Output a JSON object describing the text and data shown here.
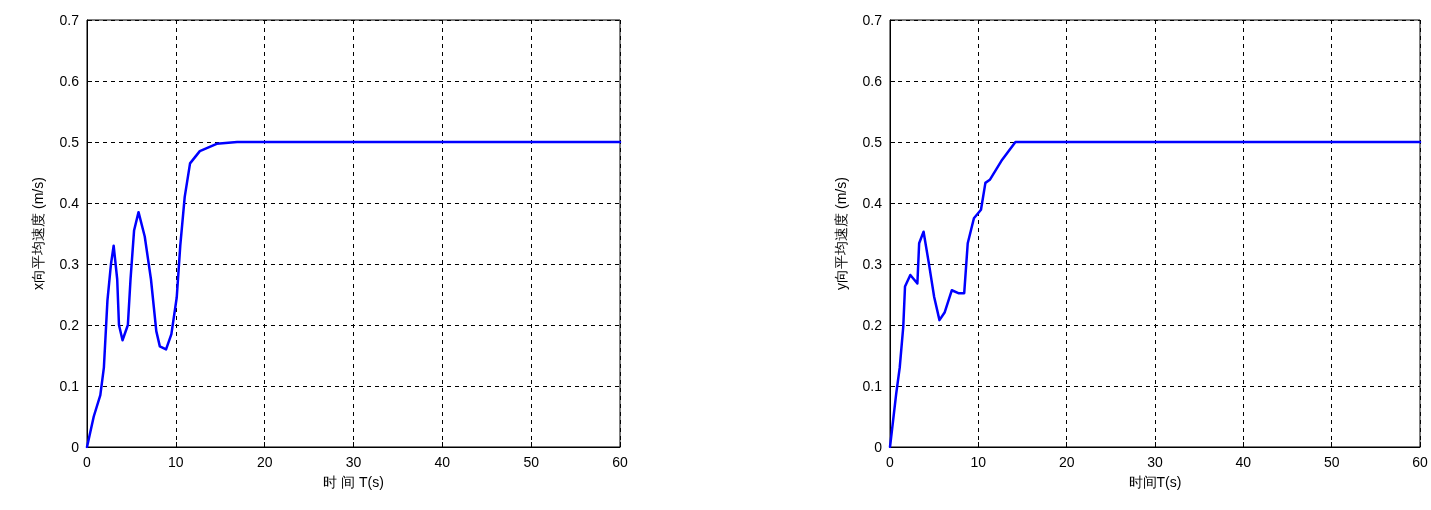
{
  "chart_data": [
    {
      "type": "line",
      "xlabel": "时 间 T(s)",
      "ylabel": "x向平均速度 (m/s)",
      "xlim": [
        0,
        60
      ],
      "xticks": [
        0,
        10,
        20,
        30,
        40,
        50,
        60
      ],
      "ylim": [
        0,
        0.7
      ],
      "yticks": [
        0,
        0.1,
        0.2,
        0.3,
        0.4,
        0.5,
        0.6,
        0.7
      ],
      "grid": true,
      "line_style": "solid",
      "marker": "none",
      "series": [
        {
          "color": "#0000ff",
          "x": [
            0,
            0.76,
            1.5,
            1.9,
            2.3,
            2.7,
            3.0,
            3.4,
            3.6,
            4.0,
            4.6,
            4.9,
            5.3,
            5.8,
            6.5,
            7.2,
            7.8,
            8.2,
            8.9,
            9.5,
            10.1,
            10.5,
            11.0,
            11.6,
            12.7,
            14.6,
            16.9,
            60
          ],
          "values": [
            0,
            0.05,
            0.085,
            0.13,
            0.24,
            0.3,
            0.33,
            0.275,
            0.2,
            0.175,
            0.2,
            0.275,
            0.355,
            0.385,
            0.345,
            0.275,
            0.19,
            0.165,
            0.16,
            0.185,
            0.245,
            0.33,
            0.41,
            0.465,
            0.485,
            0.497,
            0.5,
            0.5
          ]
        }
      ]
    },
    {
      "type": "line",
      "xlabel": "时间T(s)",
      "ylabel": "y向平均速度 (m/s)",
      "xlim": [
        0,
        60
      ],
      "xticks": [
        0,
        10,
        20,
        30,
        40,
        50,
        60
      ],
      "ylim": [
        0,
        0.7
      ],
      "yticks": [
        0,
        0.1,
        0.2,
        0.3,
        0.4,
        0.5,
        0.6,
        0.7
      ],
      "grid": true,
      "line_style": "solid",
      "marker": "none",
      "series": [
        {
          "color": "#0000ff",
          "x": [
            0,
            0.3,
            0.7,
            1.1,
            1.5,
            1.7,
            2.3,
            3.1,
            3.3,
            3.8,
            4.4,
            5.0,
            5.6,
            6.2,
            7.0,
            7.8,
            8.4,
            8.8,
            9.5,
            10.3,
            10.8,
            11.3,
            12.7,
            14.2,
            60
          ],
          "values": [
            0,
            0.037,
            0.087,
            0.13,
            0.197,
            0.263,
            0.282,
            0.268,
            0.334,
            0.353,
            0.301,
            0.246,
            0.208,
            0.221,
            0.257,
            0.252,
            0.252,
            0.334,
            0.375,
            0.389,
            0.433,
            0.438,
            0.471,
            0.5,
            0.5
          ]
        }
      ]
    }
  ]
}
